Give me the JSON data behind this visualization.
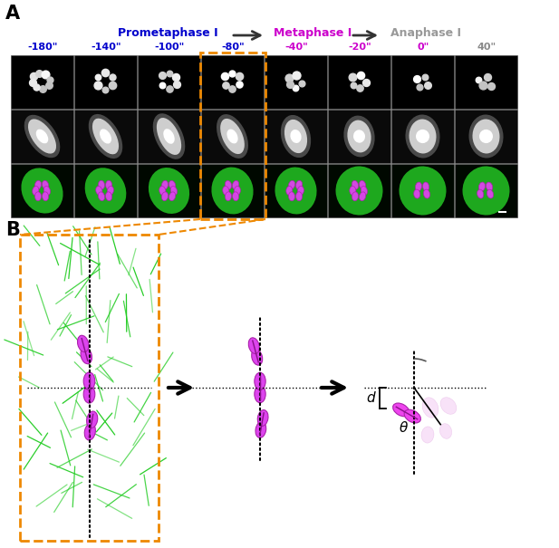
{
  "panel_a_label": "A",
  "panel_b_label": "B",
  "time_labels": [
    "-180\"",
    "-140\"",
    "-100\"",
    "-80\"",
    "-40\"",
    "-20\"",
    "0\"",
    "40\""
  ],
  "time_colors_blue": [
    "#0000cc",
    "#0000cc",
    "#0000cc",
    "#0000cc"
  ],
  "time_colors_magenta": [
    "#cc00cc",
    "#cc00cc",
    "#cc00cc"
  ],
  "time_color_gray": "#888888",
  "prometaphase_label": "Prometaphase I",
  "metaphase_label": "Metaphase I",
  "anaphase_label": "Anaphase I",
  "prometaphase_color": "#0000cc",
  "metaphase_color": "#cc00cc",
  "anaphase_color": "#999999",
  "orange_color": "#ee8800",
  "magenta_fill": "#dd44ee",
  "magenta_edge": "#aa22aa",
  "green_fiber": "#22cc22",
  "background_color": "#ffffff",
  "fig_width": 6.17,
  "fig_height": 6.05
}
